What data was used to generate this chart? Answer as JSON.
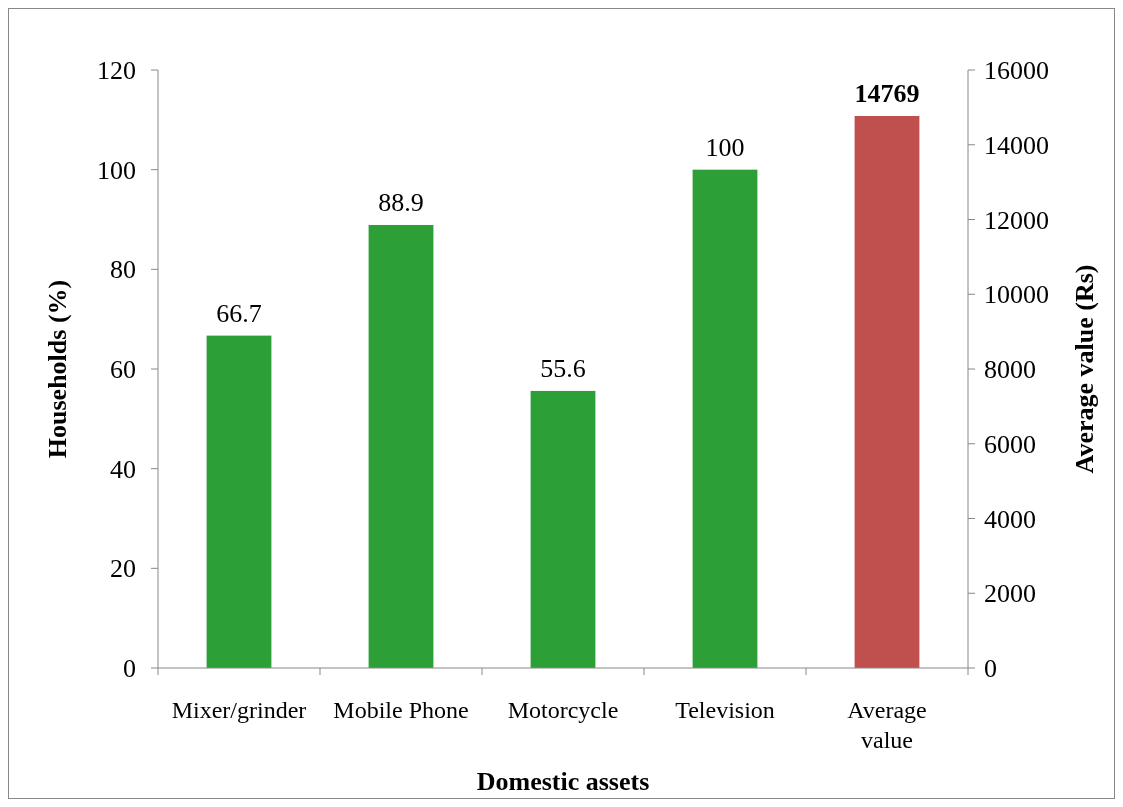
{
  "chart_data": {
    "type": "bar",
    "xlabel": "Domestic assets",
    "ylabel": "Households (%)",
    "y2label": "Average value (Rs)",
    "categories": [
      "Mixer/grinder",
      "Mobile Phone",
      "Motorcycle",
      "Television",
      "Average value"
    ],
    "series": [
      {
        "color": "#2ca037",
        "values": [
          66.7,
          88.9,
          55.6,
          100,
          null
        ]
      },
      {
        "color": "#c0504d",
        "axis": "y2",
        "values": [
          null,
          null,
          null,
          null,
          14769
        ]
      }
    ],
    "ylim": [
      0,
      120
    ],
    "yticks": [
      0,
      20,
      40,
      60,
      80,
      100,
      120
    ],
    "y2lim": [
      0,
      16000
    ],
    "y2ticks": [
      0,
      2000,
      4000,
      6000,
      8000,
      10000,
      12000,
      14000,
      16000
    ],
    "data_labels": true,
    "grid": false
  }
}
